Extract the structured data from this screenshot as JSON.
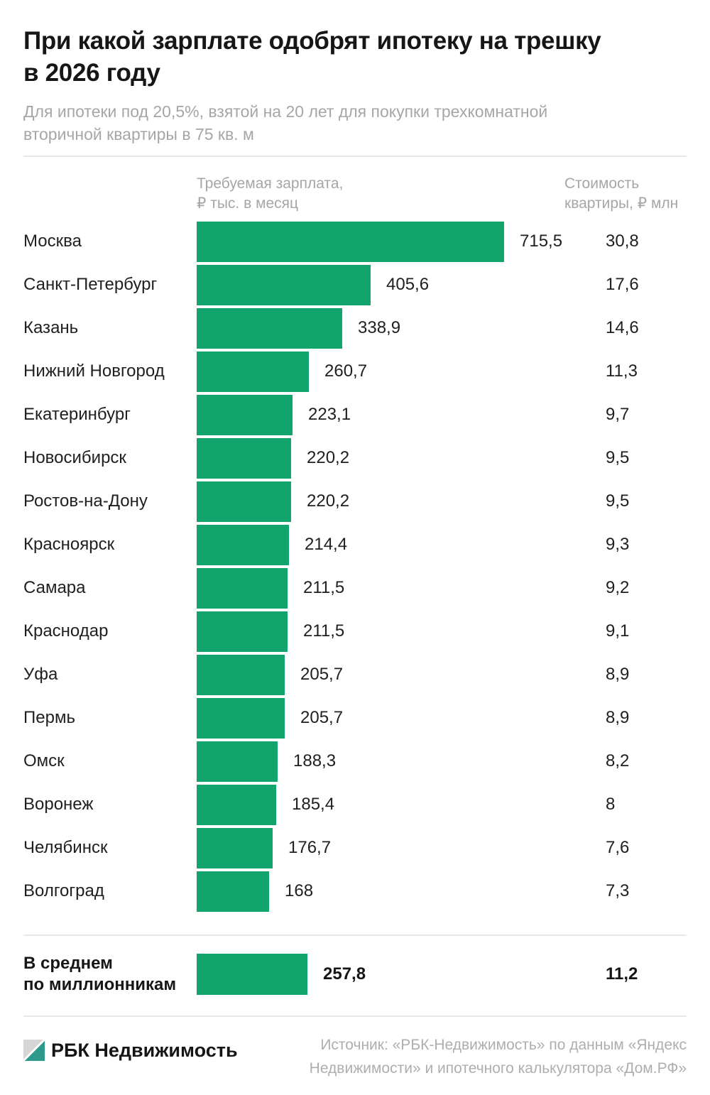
{
  "header": {
    "title_lines": [
      "При какой зарплате одобрят ипотеку на трешку",
      "в 2026 году"
    ],
    "subtitle_lines": [
      "Для ипотеки под 20,5%, взятой на 20 лет для покупки трехкомнатной",
      "вторичной квартиры в 75 кв. м"
    ]
  },
  "columns": {
    "salary_header_lines": [
      "Требуемая зарплата,",
      "₽ тыс. в месяц"
    ],
    "price_header_lines": [
      "Стоимость",
      "квартиры, ₽ млн"
    ]
  },
  "rows": [
    {
      "city": "Москва",
      "salary": "715,5",
      "price": "30,8"
    },
    {
      "city": "Санкт-Петербург",
      "salary": "405,6",
      "price": "17,6"
    },
    {
      "city": "Казань",
      "salary": "338,9",
      "price": "14,6"
    },
    {
      "city": "Нижний Новгород",
      "salary": "260,7",
      "price": "11,3"
    },
    {
      "city": "Екатеринбург",
      "salary": "223,1",
      "price": "9,7"
    },
    {
      "city": "Новосибирск",
      "salary": "220,2",
      "price": "9,5"
    },
    {
      "city": "Ростов-на-Дону",
      "salary": "220,2",
      "price": "9,5"
    },
    {
      "city": "Красноярск",
      "salary": "214,4",
      "price": "9,3"
    },
    {
      "city": "Самара",
      "salary": "211,5",
      "price": "9,2"
    },
    {
      "city": "Краснодар",
      "salary": "211,5",
      "price": "9,1"
    },
    {
      "city": "Уфа",
      "salary": "205,7",
      "price": "8,9"
    },
    {
      "city": "Пермь",
      "salary": "205,7",
      "price": "8,9"
    },
    {
      "city": "Омск",
      "salary": "188,3",
      "price": "8,2"
    },
    {
      "city": "Воронеж",
      "salary": "185,4",
      "price": "8"
    },
    {
      "city": "Челябинск",
      "salary": "176,7",
      "price": "7,6"
    },
    {
      "city": "Волгоград",
      "salary": "168",
      "price": "7,3"
    }
  ],
  "average": {
    "label_lines": [
      "В среднем",
      "по миллионникам"
    ],
    "salary": "257,8",
    "price": "11,2"
  },
  "footer": {
    "brand": "РБК Недвижимость",
    "source_lines": [
      "Источник: «РБК-Недвижимость» по данным «Яндекс",
      "Недвижимости» и ипотечного калькулятора «Дом.РФ»"
    ]
  },
  "colors": {
    "bar_green": "#12a46d",
    "logo_teal": "#2e9a8c",
    "logo_gray": "#d5d5d5",
    "muted_text": "#a6a6a6"
  },
  "chart_data": {
    "type": "bar",
    "orientation": "horizontal",
    "title": "При какой зарплате одобрят ипотеку на трешку в 2026 году",
    "subtitle": "Для ипотеки под 20,5%, взятой на 20 лет для покупки трехкомнатной вторичной квартиры в 75 кв. м",
    "categories": [
      "Москва",
      "Санкт-Петербург",
      "Казань",
      "Нижний Новгород",
      "Екатеринбург",
      "Новосибирск",
      "Ростов-на-Дону",
      "Красноярск",
      "Самара",
      "Краснодар",
      "Уфа",
      "Пермь",
      "Омск",
      "Воронеж",
      "Челябинск",
      "Волгоград"
    ],
    "series": [
      {
        "name": "Требуемая зарплата, ₽ тыс. в месяц",
        "values": [
          715.5,
          405.6,
          338.9,
          260.7,
          223.1,
          220.2,
          220.2,
          214.4,
          211.5,
          211.5,
          205.7,
          205.7,
          188.3,
          185.4,
          176.7,
          168
        ]
      },
      {
        "name": "Стоимость квартиры, ₽ млн",
        "values": [
          30.8,
          17.6,
          14.6,
          11.3,
          9.7,
          9.5,
          9.5,
          9.3,
          9.2,
          9.1,
          8.9,
          8.9,
          8.2,
          8,
          7.6,
          7.3
        ]
      }
    ],
    "average": {
      "category": "В среднем по миллионникам",
      "salary": 257.8,
      "price": 11.2
    },
    "xlim": [
      0,
      715.5
    ],
    "grid": false,
    "legend_position": "none",
    "bar_color": "#12a46d",
    "source": "Источник: «РБК-Недвижимость» по данным «Яндекс Недвижимости» и ипотечного калькулятора «Дом.РФ»"
  }
}
